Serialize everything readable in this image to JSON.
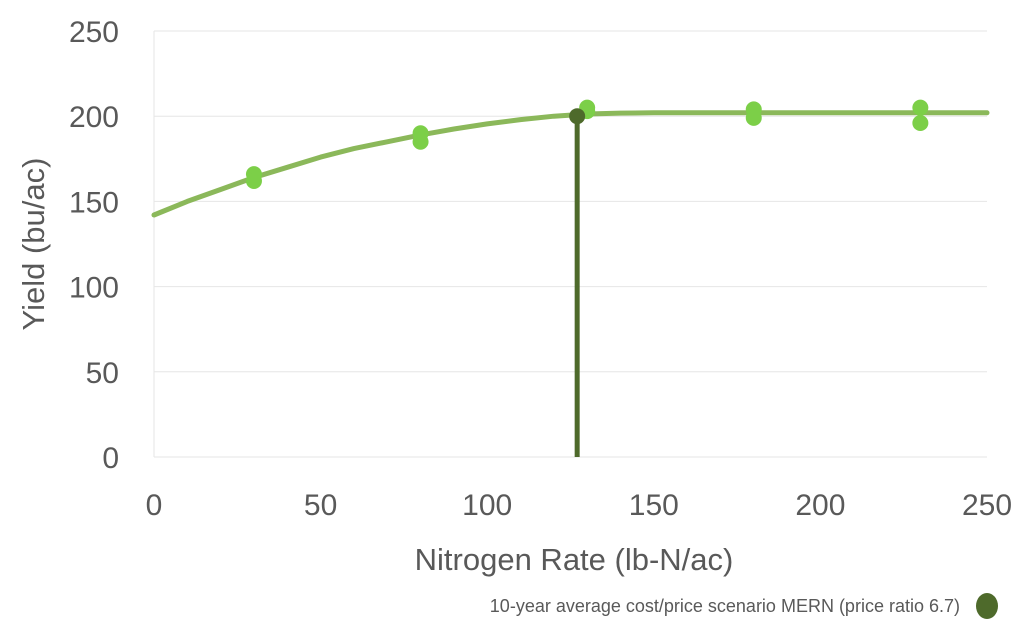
{
  "chart_data": {
    "type": "scatter",
    "xlabel": "Nitrogen Rate (lb-N/ac)",
    "ylabel": "Yield (bu/ac)",
    "xlim": [
      0,
      250
    ],
    "ylim": [
      0,
      250
    ],
    "x_ticks": [
      "0",
      "50",
      "100",
      "150",
      "200",
      "250"
    ],
    "y_ticks": [
      "0",
      "50",
      "100",
      "150",
      "200",
      "250"
    ],
    "grid": true,
    "legend_placement": "bottom-right",
    "series": [
      {
        "kind": "points",
        "color": "#7ccf48",
        "points": [
          {
            "x": 30,
            "y": 166
          },
          {
            "x": 30,
            "y": 162
          },
          {
            "x": 80,
            "y": 190
          },
          {
            "x": 80,
            "y": 185
          },
          {
            "x": 130,
            "y": 205
          },
          {
            "x": 130,
            "y": 203
          },
          {
            "x": 180,
            "y": 204
          },
          {
            "x": 180,
            "y": 199
          },
          {
            "x": 230,
            "y": 205
          },
          {
            "x": 230,
            "y": 196
          }
        ]
      },
      {
        "kind": "curve",
        "color": "#8bb85a",
        "points": [
          {
            "x": 0,
            "y": 142
          },
          {
            "x": 10,
            "y": 150
          },
          {
            "x": 20,
            "y": 157
          },
          {
            "x": 30,
            "y": 164
          },
          {
            "x": 40,
            "y": 170
          },
          {
            "x": 50,
            "y": 176
          },
          {
            "x": 60,
            "y": 181
          },
          {
            "x": 70,
            "y": 185
          },
          {
            "x": 80,
            "y": 189
          },
          {
            "x": 90,
            "y": 192.5
          },
          {
            "x": 100,
            "y": 195.5
          },
          {
            "x": 110,
            "y": 198
          },
          {
            "x": 120,
            "y": 200
          },
          {
            "x": 130,
            "y": 201.3
          },
          {
            "x": 140,
            "y": 201.8
          },
          {
            "x": 150,
            "y": 202
          },
          {
            "x": 200,
            "y": 202
          },
          {
            "x": 250,
            "y": 202
          }
        ]
      },
      {
        "name": "10-year average cost/price scenario MERN (price ratio 6.7)",
        "kind": "marker-drop",
        "color": "#4e6a2b",
        "points": [
          {
            "x": 127,
            "y": 200
          }
        ]
      }
    ]
  }
}
